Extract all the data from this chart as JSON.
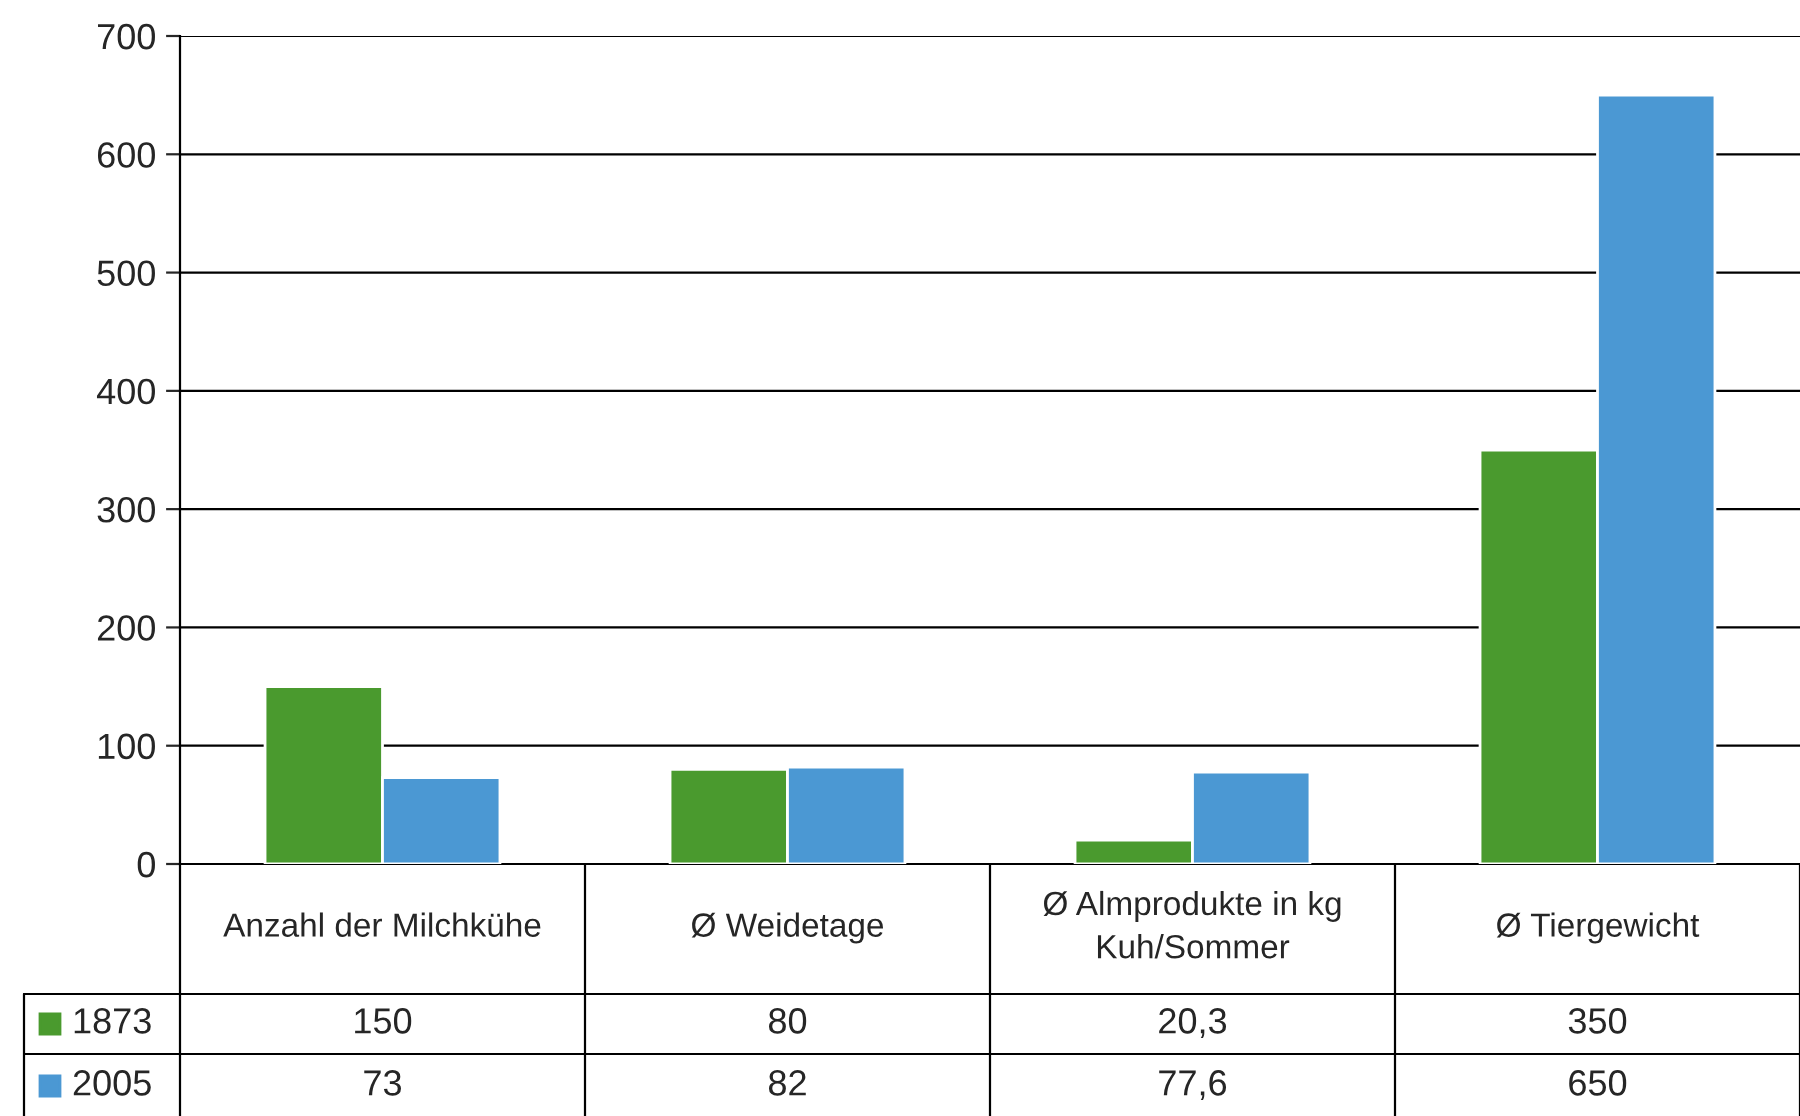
{
  "chart_data": {
    "type": "bar",
    "categories": [
      "Anzahl der Milchkühe",
      "Ø Weidetage",
      "Ø Almprodukte in kg\nKuh/Sommer",
      "Ø Tiergewicht"
    ],
    "series": [
      {
        "name": "1873",
        "color": "#4a9a2e",
        "values": [
          150,
          80,
          20.3,
          350
        ],
        "value_labels": [
          "150",
          "80",
          "20,3",
          "350"
        ]
      },
      {
        "name": "2005",
        "color": "#4b98d3",
        "values": [
          73,
          82,
          77.6,
          650
        ],
        "value_labels": [
          "73",
          "82",
          "77,6",
          "650"
        ]
      }
    ],
    "ylim": [
      0,
      700
    ],
    "yticks": [
      0,
      100,
      200,
      300,
      400,
      500,
      600,
      700
    ],
    "grid": "y",
    "legend": "bottom left"
  }
}
